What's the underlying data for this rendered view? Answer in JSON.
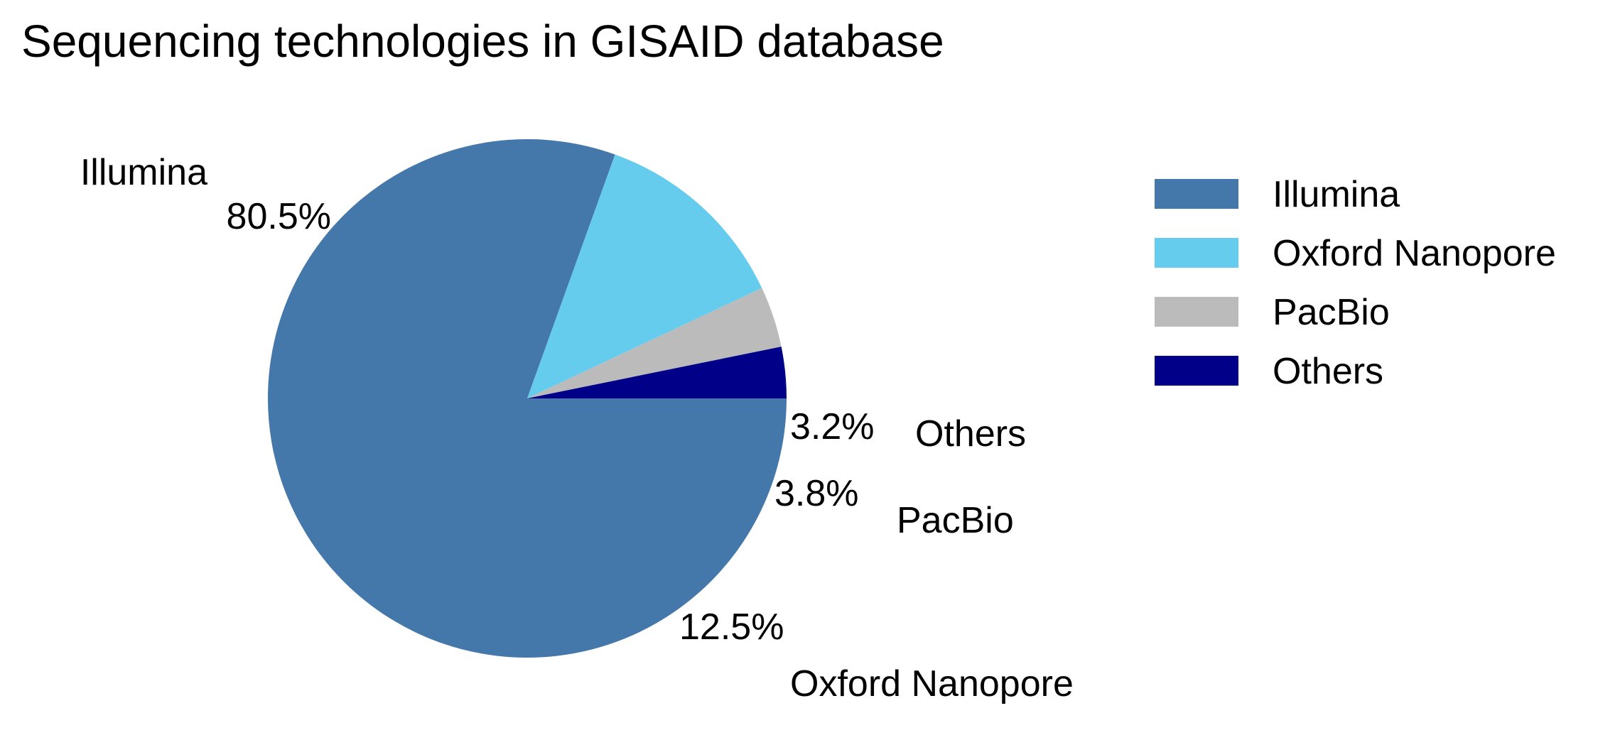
{
  "chart_data": {
    "type": "pie",
    "title": "Sequencing technologies in GISAID database",
    "start_angle_deg": 0,
    "direction": "clockwise",
    "slices": [
      {
        "label": "Illumina",
        "value": 80.5,
        "pct_label": "80.5%",
        "color": "#4477aa"
      },
      {
        "label": "Oxford Nanopore",
        "value": 12.5,
        "pct_label": "12.5%",
        "color": "#66ccee"
      },
      {
        "label": "PacBio",
        "value": 3.8,
        "pct_label": "3.8%",
        "color": "#bbbbbb"
      },
      {
        "label": "Others",
        "value": 3.2,
        "pct_label": "3.2%",
        "color": "#000088"
      }
    ],
    "legend": {
      "placement": "right",
      "entries": [
        "Illumina",
        "Oxford Nanopore",
        "PacBio",
        "Others"
      ]
    }
  }
}
